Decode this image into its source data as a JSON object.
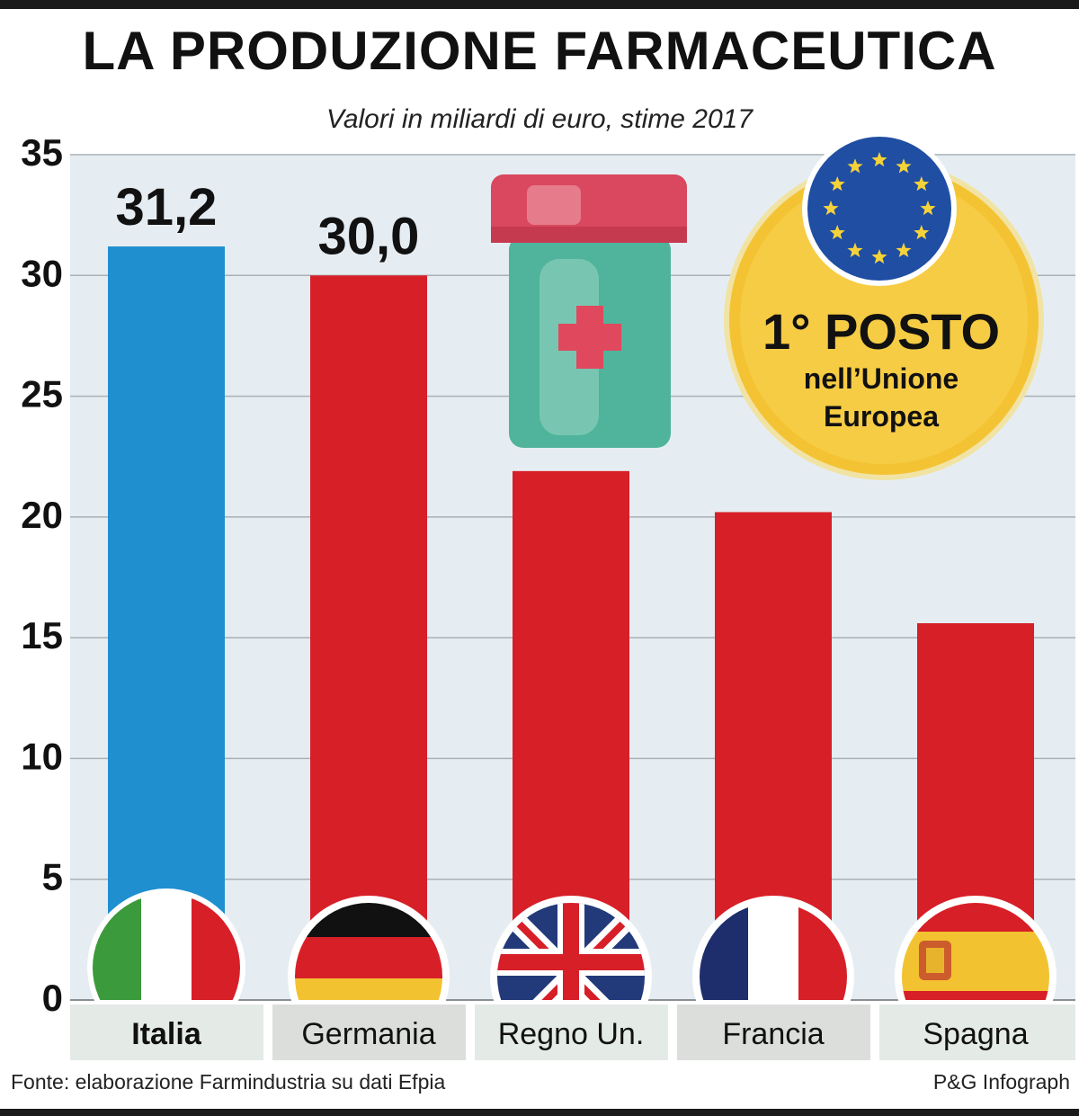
{
  "title": "LA PRODUZIONE FARMACEUTICA",
  "subtitle": "Valori in miliardi di euro, stime 2017",
  "badge": {
    "line1": "1° POSTO",
    "line2": "nell’Unione",
    "line3": "Europea",
    "icon": "eu-flag-icon"
  },
  "pill_icon": "medicine-bottle-icon",
  "source": "Fonte: elaborazione Farmindustria su dati Efpia",
  "credit": "P&G Infograph",
  "colors": {
    "italy": "#1f8fd0",
    "others": "#d71f28",
    "plot_bg": "#e6edf2",
    "badge": "#f4c333"
  },
  "chart_data": {
    "type": "bar",
    "title": "LA PRODUZIONE FARMACEUTICA",
    "subtitle": "Valori in miliardi di euro, stime 2017",
    "categories": [
      "Italia",
      "Germania",
      "Regno Un.",
      "Francia",
      "Spagna"
    ],
    "values": [
      31.2,
      30.0,
      21.9,
      20.2,
      15.6
    ],
    "data_labels": [
      "31,2",
      "30,0",
      "",
      "",
      ""
    ],
    "yticks": [
      "0",
      "5",
      "10",
      "15",
      "20",
      "25",
      "30",
      "35"
    ],
    "ylim": [
      0,
      35
    ],
    "grid": true
  }
}
